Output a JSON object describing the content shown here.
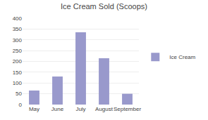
{
  "chart_data": {
    "type": "bar",
    "title": "Ice Cream Sold (Scoops)",
    "categories": [
      "May",
      "June",
      "July",
      "August",
      "September"
    ],
    "series": [
      {
        "name": "Ice Cream",
        "color": "#9999cc",
        "values": [
          65,
          130,
          335,
          215,
          50
        ]
      }
    ],
    "ylim": [
      0,
      400
    ],
    "yticks": [
      0,
      50,
      100,
      150,
      200,
      250,
      300,
      350,
      400
    ],
    "grid": true,
    "legend": "right"
  }
}
